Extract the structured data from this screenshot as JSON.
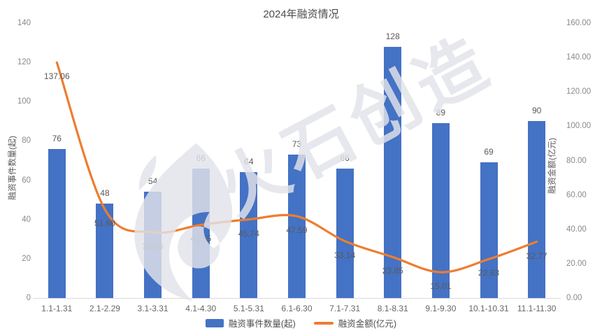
{
  "title": "2024年融资情况",
  "watermark": {
    "text": "火石创造"
  },
  "colors": {
    "bar": "#4472C4",
    "line": "#ED7D31",
    "axis_line": "#D9D9D9",
    "tick_text": "#8A8A8A",
    "data_label_text": "#595959",
    "title_text": "#4C4C4C",
    "watermark": "rgba(226,227,233,0.82)"
  },
  "chart_data": {
    "type": "bar+line combo",
    "title": "2024年融资情况",
    "categories": [
      "1.1-1.31",
      "2.1-2.29",
      "3.1-3.31",
      "4.1-4.30",
      "5.1-5.31",
      "6.1-6.30",
      "7.1-7.31",
      "8.1-8.31",
      "9.1-9.30",
      "10.1-10.31",
      "11.1-11.30"
    ],
    "series": [
      {
        "name": "融资事件数量(起)",
        "type": "bar",
        "axis": "left",
        "values": [
          76,
          48,
          54,
          66,
          64,
          73,
          66,
          128,
          89,
          69,
          90
        ],
        "labels": [
          "76",
          "48",
          "54",
          "66",
          "64",
          "73",
          "66",
          "128",
          "89",
          "69",
          "90"
        ]
      },
      {
        "name": "融资金额(亿元)",
        "type": "line",
        "axis": "right",
        "smooth": true,
        "values": [
          137.06,
          51.6,
          38.25,
          42.55,
          45.74,
          47.59,
          33.14,
          23.85,
          15.01,
          22.63,
          32.77
        ],
        "labels": [
          "137.06",
          "51.60",
          "38.25",
          "42.55",
          "45.74",
          "47.59",
          "33.14",
          "23.85",
          "15.01",
          "22.63",
          "32.77"
        ]
      }
    ],
    "left_axis": {
      "label": "融资事件数量(起)",
      "min": 0,
      "max": 140,
      "ticks": [
        "0",
        "20",
        "40",
        "60",
        "80",
        "100",
        "120",
        "140"
      ]
    },
    "right_axis": {
      "label": "融资金额(亿元)",
      "min": 0,
      "max": 160,
      "ticks": [
        "0.00",
        "20.00",
        "40.00",
        "60.00",
        "80.00",
        "100.00",
        "120.00",
        "140.00",
        "160.00"
      ]
    },
    "grid": false,
    "legend_position": "bottom"
  },
  "legend": {
    "items": [
      {
        "label": "融资事件数量(起)",
        "type": "bar"
      },
      {
        "label": "融资金额(亿元)",
        "type": "line"
      }
    ]
  }
}
